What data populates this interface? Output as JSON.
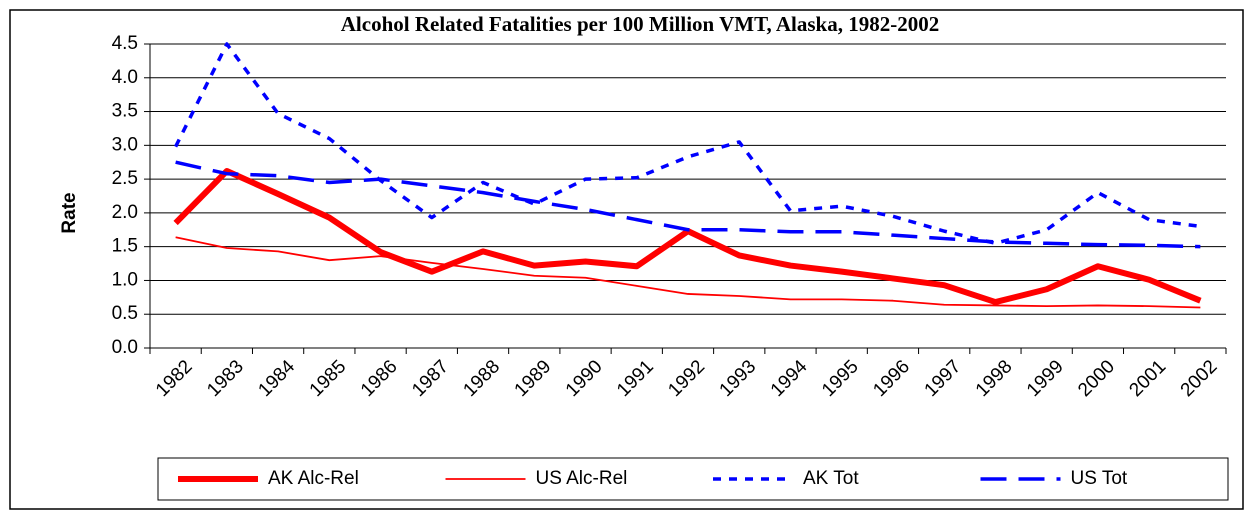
{
  "chart_data": {
    "type": "line",
    "title": "Alcohol Related Fatalities per 100 Million VMT, Alaska, 1982-2002",
    "y_label": "Rate",
    "categories": [
      "1982",
      "1983",
      "1984",
      "1985",
      "1986",
      "1987",
      "1988",
      "1989",
      "1990",
      "1991",
      "1992",
      "1993",
      "1994",
      "1995",
      "1996",
      "1997",
      "1998",
      "1999",
      "2000",
      "2001",
      "2002"
    ],
    "series": [
      {
        "name": "AK Alc-Rel",
        "color": "#ff0000",
        "line_style": "solid",
        "line_width": "thick",
        "values": [
          1.85,
          2.62,
          2.28,
          1.93,
          1.42,
          1.13,
          1.43,
          1.22,
          1.28,
          1.21,
          1.73,
          1.37,
          1.22,
          1.13,
          1.03,
          0.93,
          0.68,
          0.87,
          1.21,
          1.01,
          0.7
        ]
      },
      {
        "name": "US Alc-Rel",
        "color": "#ff0000",
        "line_style": "solid",
        "line_width": "thin",
        "values": [
          1.64,
          1.48,
          1.43,
          1.3,
          1.36,
          1.26,
          1.17,
          1.07,
          1.04,
          0.92,
          0.8,
          0.77,
          0.72,
          0.72,
          0.7,
          0.64,
          0.63,
          0.62,
          0.63,
          0.62,
          0.6
        ]
      },
      {
        "name": "AK Tot",
        "color": "#0000ff",
        "line_style": "dotted",
        "line_width": "medium",
        "values": [
          2.98,
          4.5,
          3.47,
          3.1,
          2.48,
          1.93,
          2.45,
          2.13,
          2.5,
          2.52,
          2.83,
          3.05,
          2.03,
          2.1,
          1.95,
          1.73,
          1.55,
          1.75,
          2.3,
          1.9,
          1.8
        ]
      },
      {
        "name": "US Tot",
        "color": "#0000ff",
        "line_style": "dashed",
        "line_width": "medium",
        "values": [
          2.75,
          2.58,
          2.55,
          2.45,
          2.5,
          2.4,
          2.3,
          2.17,
          2.05,
          1.9,
          1.75,
          1.75,
          1.72,
          1.72,
          1.67,
          1.62,
          1.57,
          1.55,
          1.53,
          1.52,
          1.5
        ]
      }
    ],
    "ylim": [
      0,
      4.5
    ],
    "yticks": [
      {
        "value": 0,
        "label": "0.0"
      },
      {
        "value": 0.5,
        "label": "0.5"
      },
      {
        "value": 1,
        "label": "1.0"
      },
      {
        "value": 1.5,
        "label": "1.5"
      },
      {
        "value": 2,
        "label": "2.0"
      },
      {
        "value": 2.5,
        "label": "2.5"
      },
      {
        "value": 3,
        "label": "3.0"
      },
      {
        "value": 3.5,
        "label": "3.5"
      },
      {
        "value": 4,
        "label": "4.0"
      },
      {
        "value": 4.5,
        "label": "4.5"
      }
    ],
    "grid": true,
    "legend": "bottom"
  }
}
